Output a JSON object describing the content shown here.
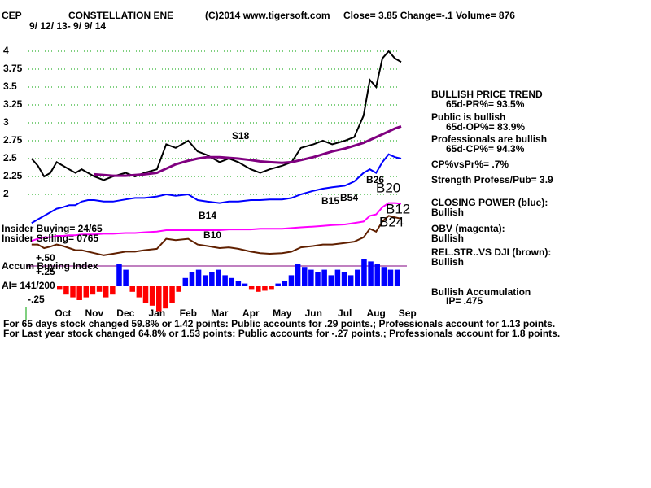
{
  "header": {
    "symbol": "CEP",
    "name": "CONSTELLATION ENE",
    "copyright": "(C)2014 www.tigersoft.com",
    "quote": "Close=  3.85  Change=-.1 Volume= 876",
    "range": "9/ 12/ 13- 9/ 9/ 14"
  },
  "panel": [
    "BULLISH PRICE TREND",
    "65d-PR%= 93.5%",
    "Public is bullish",
    "65d-OP%= 83.9%",
    "Professionals are bullish",
    "65d-CP%= 94.3%",
    "CP%vsPr%=  .7%",
    "Strength Profess/Pub= 3.9",
    "CLOSING POWER (blue):",
    "Bullish",
    "OBV (magenta):",
    "Bullish",
    "REL.STR..VS DJI (brown):",
    "Bullish",
    "Bullish Accumulation",
    "IP=  .475"
  ],
  "footer": [
    "For 65 days stock changed  59.8% or  1.42 points:  Public accounts for  .29 points.;  Professionals account for  1.13 points.",
    "For Last year stock changed  64.8% or  1.53 points:  Public accounts for -.27 points.;  Professionals account for  1.8 points."
  ],
  "chart_data": [
    {
      "type": "line",
      "annotations": [
        "S18",
        "B14",
        "B10",
        "B15",
        "B54",
        "B26",
        "B20",
        "B12",
        "B24",
        "Insider Buying= 24/65",
        "Insider Selling= 0765"
      ],
      "x": [
        0,
        0.2,
        0.4,
        0.6,
        0.8,
        1,
        1.2,
        1.4,
        1.6,
        1.8,
        2,
        2.3,
        2.6,
        3,
        3.3,
        3.6,
        4,
        4.3,
        4.6,
        5,
        5.3,
        5.6,
        6,
        6.3,
        6.6,
        7,
        7.3,
        7.6,
        8,
        8.3,
        8.6,
        9,
        9.3,
        9.6,
        10,
        10.3,
        10.6,
        10.8,
        11,
        11.2,
        11.4,
        11.6,
        11.8
      ],
      "xlim": [
        -0.1,
        11.8
      ],
      "xticks": [
        {
          "value": 1,
          "label": "Oct"
        },
        {
          "value": 2,
          "label": "Nov"
        },
        {
          "value": 3,
          "label": "Dec"
        },
        {
          "value": 4,
          "label": "Jan"
        },
        {
          "value": 5,
          "label": "Feb"
        },
        {
          "value": 6,
          "label": "Mar"
        },
        {
          "value": 7,
          "label": "Apr"
        },
        {
          "value": 8,
          "label": "May"
        },
        {
          "value": 9,
          "label": "Jun"
        },
        {
          "value": 10,
          "label": "Jul"
        },
        {
          "value": 11,
          "label": "Aug"
        },
        {
          "value": 12,
          "label": "Sep"
        }
      ],
      "ylim": [
        1.0,
        4.25
      ],
      "yticks": [
        2,
        2.25,
        2.5,
        2.75,
        3,
        3.25,
        3.5,
        3.75,
        4
      ],
      "grid": true,
      "series": [
        {
          "color": "#000000",
          "values": [
            2.5,
            2.4,
            2.25,
            2.3,
            2.45,
            2.4,
            2.35,
            2.3,
            2.35,
            2.3,
            2.25,
            2.2,
            2.25,
            2.3,
            2.25,
            2.3,
            2.35,
            2.7,
            2.65,
            2.75,
            2.6,
            2.55,
            2.45,
            2.5,
            2.45,
            2.35,
            2.3,
            2.35,
            2.4,
            2.45,
            2.65,
            2.7,
            2.75,
            2.7,
            2.75,
            2.8,
            3.1,
            3.6,
            3.5,
            3.9,
            4.0,
            3.9,
            3.85
          ]
        },
        {
          "color": "#800080",
          "values": [
            null,
            null,
            null,
            null,
            null,
            null,
            null,
            null,
            null,
            null,
            2.28,
            2.27,
            2.26,
            2.26,
            2.27,
            2.28,
            2.3,
            2.36,
            2.42,
            2.47,
            2.5,
            2.52,
            2.52,
            2.51,
            2.5,
            2.48,
            2.46,
            2.45,
            2.44,
            2.45,
            2.48,
            2.52,
            2.56,
            2.6,
            2.64,
            2.68,
            2.72,
            2.76,
            2.8,
            2.84,
            2.88,
            2.92,
            2.95
          ]
        },
        {
          "color": "#0000ff",
          "values": [
            1.6,
            1.65,
            1.7,
            1.75,
            1.8,
            1.82,
            1.85,
            1.85,
            1.9,
            1.92,
            1.92,
            1.9,
            1.9,
            1.93,
            1.95,
            1.95,
            1.97,
            2.0,
            1.98,
            2.0,
            1.92,
            1.9,
            1.88,
            1.9,
            1.9,
            1.92,
            1.92,
            1.93,
            1.93,
            1.95,
            2.0,
            2.05,
            2.08,
            2.1,
            2.12,
            2.18,
            2.3,
            2.35,
            2.3,
            2.45,
            2.56,
            2.52,
            2.5
          ]
        },
        {
          "color": "#ff00ff",
          "values": [
            1.35,
            1.38,
            1.4,
            1.4,
            1.42,
            1.42,
            1.43,
            1.43,
            1.44,
            1.44,
            1.44,
            1.45,
            1.45,
            1.46,
            1.46,
            1.47,
            1.48,
            1.5,
            1.5,
            1.5,
            1.5,
            1.5,
            1.5,
            1.51,
            1.51,
            1.51,
            1.52,
            1.52,
            1.52,
            1.53,
            1.54,
            1.55,
            1.56,
            1.57,
            1.58,
            1.6,
            1.62,
            1.7,
            1.72,
            1.82,
            1.88,
            1.88,
            1.87
          ]
        },
        {
          "color": "#602000",
          "values": [
            1.3,
            1.3,
            1.25,
            1.27,
            1.3,
            1.28,
            1.25,
            1.22,
            1.22,
            1.2,
            1.18,
            1.15,
            1.17,
            1.2,
            1.2,
            1.22,
            1.24,
            1.38,
            1.36,
            1.38,
            1.3,
            1.28,
            1.25,
            1.26,
            1.24,
            1.2,
            1.18,
            1.17,
            1.18,
            1.2,
            1.26,
            1.28,
            1.3,
            1.3,
            1.32,
            1.34,
            1.4,
            1.52,
            1.48,
            1.62,
            1.7,
            1.68,
            1.66
          ]
        }
      ]
    },
    {
      "type": "bar",
      "title": "Accum Buying Index",
      "label": "AI= 141/200",
      "ylim": [
        -0.5,
        0.75
      ],
      "yticks": [
        {
          "value": 0.5,
          "label": "+.50"
        },
        {
          "value": 0.25,
          "label": "+.25"
        },
        {
          "value": -0.25,
          "label": "-.25"
        }
      ],
      "values": [
        -0.05,
        -0.15,
        -0.2,
        -0.25,
        -0.2,
        -0.15,
        -0.1,
        -0.2,
        -0.15,
        0.4,
        0.3,
        -0.1,
        -0.2,
        -0.3,
        -0.35,
        -0.45,
        -0.4,
        -0.3,
        -0.1,
        0.15,
        0.25,
        0.3,
        0.2,
        0.25,
        0.3,
        0.2,
        0.15,
        0.1,
        0.05,
        -0.05,
        -0.1,
        -0.08,
        -0.05,
        0.05,
        0.1,
        0.2,
        0.4,
        0.35,
        0.3,
        0.25,
        0.3,
        0.2,
        0.3,
        0.25,
        0.2,
        0.3,
        0.5,
        0.45,
        0.4,
        0.35,
        0.3,
        0.3
      ]
    }
  ]
}
